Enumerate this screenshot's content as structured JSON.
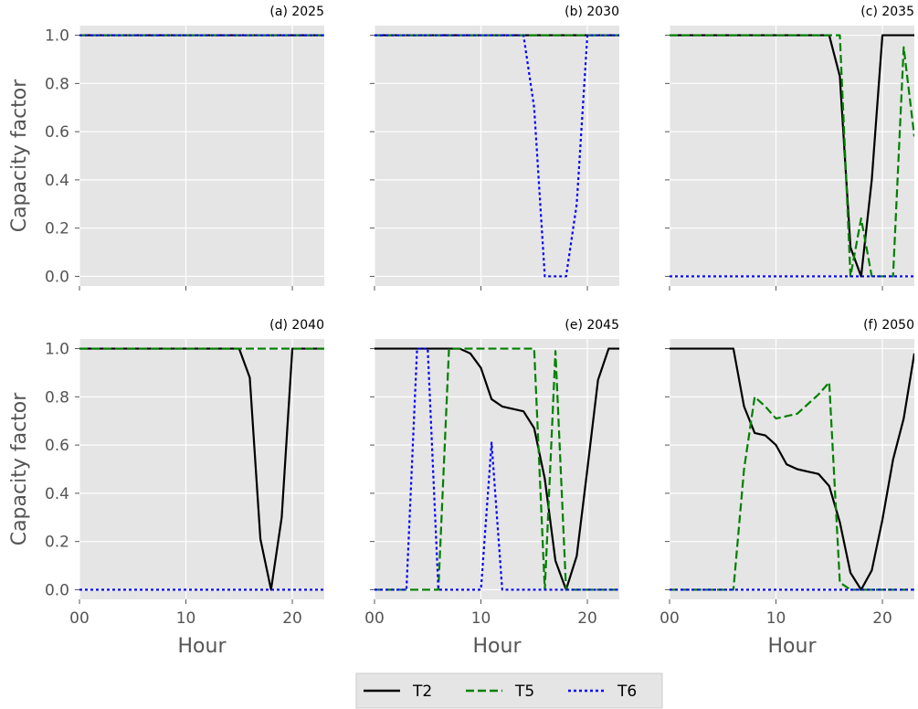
{
  "chart_data": {
    "type": "line",
    "ylabel": "Capacity factor",
    "xlabel": "Hour",
    "xlim": [
      0,
      23
    ],
    "ylim": [
      -0.04,
      1.04
    ],
    "x_ticks": [
      0,
      10,
      20
    ],
    "x_tick_labels": [
      "00",
      "10",
      "20"
    ],
    "y_ticks": [
      0.0,
      0.2,
      0.4,
      0.6,
      0.8,
      1.0
    ],
    "y_tick_labels": [
      "0.0",
      "0.2",
      "0.4",
      "0.6",
      "0.8",
      "1.0"
    ],
    "grid": true,
    "style": "ggplot",
    "legend": {
      "placement": "bottom-center",
      "entries": [
        {
          "name": "T2",
          "color": "#000000",
          "dash": "solid"
        },
        {
          "name": "T5",
          "color": "#008000",
          "dash": "dashed"
        },
        {
          "name": "T6",
          "color": "#0000ff",
          "dash": "dotted"
        }
      ]
    },
    "hours": [
      0,
      1,
      2,
      3,
      4,
      5,
      6,
      7,
      8,
      9,
      10,
      11,
      12,
      13,
      14,
      15,
      16,
      17,
      18,
      19,
      20,
      21,
      22,
      23
    ],
    "panels": [
      {
        "title": "(a) 2025",
        "series": [
          {
            "name": "T2",
            "values": [
              1,
              1,
              1,
              1,
              1,
              1,
              1,
              1,
              1,
              1,
              1,
              1,
              1,
              1,
              1,
              1,
              1,
              1,
              1,
              1,
              1,
              1,
              1,
              1
            ]
          },
          {
            "name": "T5",
            "values": [
              1,
              1,
              1,
              1,
              1,
              1,
              1,
              1,
              1,
              1,
              1,
              1,
              1,
              1,
              1,
              1,
              1,
              1,
              1,
              1,
              1,
              1,
              1,
              1
            ]
          },
          {
            "name": "T6",
            "values": [
              1,
              1,
              1,
              1,
              1,
              1,
              1,
              1,
              1,
              1,
              1,
              1,
              1,
              1,
              1,
              1,
              1,
              1,
              1,
              1,
              1,
              1,
              1,
              1
            ]
          }
        ]
      },
      {
        "title": "(b) 2030",
        "series": [
          {
            "name": "T2",
            "values": [
              1,
              1,
              1,
              1,
              1,
              1,
              1,
              1,
              1,
              1,
              1,
              1,
              1,
              1,
              1,
              1,
              1,
              1,
              1,
              1,
              1,
              1,
              1,
              1
            ]
          },
          {
            "name": "T5",
            "values": [
              1,
              1,
              1,
              1,
              1,
              1,
              1,
              1,
              1,
              1,
              1,
              1,
              1,
              1,
              1,
              1,
              1,
              1,
              1,
              1,
              1,
              1,
              1,
              1
            ]
          },
          {
            "name": "T6",
            "values": [
              1,
              1,
              1,
              1,
              1,
              1,
              1,
              1,
              1,
              1,
              1,
              1,
              1,
              1,
              1,
              0.7,
              0,
              0,
              0,
              0.3,
              1,
              1,
              1,
              1
            ]
          }
        ]
      },
      {
        "title": "(c) 2035",
        "series": [
          {
            "name": "T2",
            "values": [
              1,
              1,
              1,
              1,
              1,
              1,
              1,
              1,
              1,
              1,
              1,
              1,
              1,
              1,
              1,
              1,
              0.83,
              0.12,
              0,
              0.4,
              1,
              1,
              1,
              1
            ]
          },
          {
            "name": "T5",
            "values": [
              1,
              1,
              1,
              1,
              1,
              1,
              1,
              1,
              1,
              1,
              1,
              1,
              1,
              1,
              1,
              1,
              1,
              0,
              0.24,
              0,
              0,
              0,
              0.95,
              0.58
            ]
          },
          {
            "name": "T6",
            "values": [
              0,
              0,
              0,
              0,
              0,
              0,
              0,
              0,
              0,
              0,
              0,
              0,
              0,
              0,
              0,
              0,
              0,
              0,
              0,
              0,
              0,
              0,
              0,
              0
            ]
          }
        ]
      },
      {
        "title": "(d) 2040",
        "series": [
          {
            "name": "T2",
            "values": [
              1,
              1,
              1,
              1,
              1,
              1,
              1,
              1,
              1,
              1,
              1,
              1,
              1,
              1,
              1,
              1,
              0.88,
              0.21,
              0,
              0.3,
              1,
              1,
              1,
              1
            ]
          },
          {
            "name": "T5",
            "values": [
              1,
              1,
              1,
              1,
              1,
              1,
              1,
              1,
              1,
              1,
              1,
              1,
              1,
              1,
              1,
              1,
              1,
              1,
              1,
              1,
              1,
              1,
              1,
              1
            ]
          },
          {
            "name": "T6",
            "values": [
              0,
              0,
              0,
              0,
              0,
              0,
              0,
              0,
              0,
              0,
              0,
              0,
              0,
              0,
              0,
              0,
              0,
              0,
              0,
              0,
              0,
              0,
              0,
              0
            ]
          }
        ]
      },
      {
        "title": "(e) 2045",
        "series": [
          {
            "name": "T2",
            "values": [
              1,
              1,
              1,
              1,
              1,
              1,
              1,
              1,
              1,
              0.98,
              0.92,
              0.79,
              0.76,
              0.75,
              0.74,
              0.67,
              0.46,
              0.12,
              0,
              0.14,
              0.5,
              0.87,
              1,
              1
            ]
          },
          {
            "name": "T5",
            "values": [
              0,
              0,
              0,
              0,
              0,
              0,
              0,
              1,
              1,
              1,
              1,
              1,
              1,
              1,
              1,
              1,
              0,
              0.99,
              0,
              0,
              0,
              0,
              0,
              0
            ]
          },
          {
            "name": "T6",
            "values": [
              0,
              0,
              0,
              0,
              1,
              1,
              0,
              0,
              0,
              0,
              0,
              0.61,
              0,
              0,
              0,
              0,
              0,
              0,
              0,
              0,
              0,
              0,
              0,
              0
            ]
          }
        ]
      },
      {
        "title": "(f) 2050",
        "series": [
          {
            "name": "T2",
            "values": [
              1,
              1,
              1,
              1,
              1,
              1,
              1,
              0.76,
              0.65,
              0.64,
              0.6,
              0.52,
              0.5,
              0.49,
              0.48,
              0.43,
              0.28,
              0.07,
              0,
              0.08,
              0.29,
              0.54,
              0.71,
              0.98
            ]
          },
          {
            "name": "T5",
            "values": [
              0,
              0,
              0,
              0,
              0,
              0,
              0,
              0.5,
              0.8,
              0.76,
              0.71,
              0.72,
              0.73,
              0.77,
              0.81,
              0.86,
              0.03,
              0,
              0,
              0,
              0,
              0,
              0,
              0
            ]
          },
          {
            "name": "T6",
            "values": [
              0,
              0,
              0,
              0,
              0,
              0,
              0,
              0,
              0,
              0,
              0,
              0,
              0,
              0,
              0,
              0,
              0,
              0,
              0,
              0,
              0,
              0,
              0,
              0
            ]
          }
        ]
      }
    ]
  }
}
